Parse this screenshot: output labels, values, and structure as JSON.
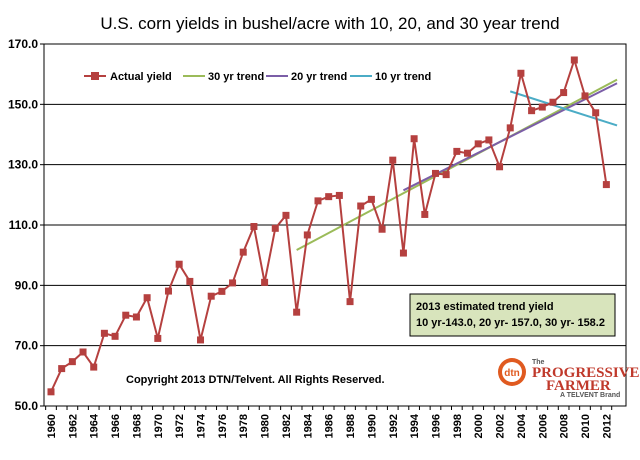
{
  "chart_data": {
    "type": "line",
    "title": "U.S. corn yields in bushel/acre with  10, 20, and 30 year trend",
    "ylim": [
      50,
      170
    ],
    "yticks": [
      "50.0",
      "70.0",
      "90.0",
      "110.0",
      "130.0",
      "150.0",
      "170.0"
    ],
    "ytick_values": [
      50,
      70,
      90,
      110,
      130,
      150,
      170
    ],
    "x_start": 1960,
    "x_end": 2013,
    "xtick_labels": [
      "1960",
      "1962",
      "1964",
      "1966",
      "1968",
      "1970",
      "1972",
      "1974",
      "1976",
      "1978",
      "1980",
      "1982",
      "1984",
      "1986",
      "1988",
      "1990",
      "1992",
      "1994",
      "1996",
      "1998",
      "2000",
      "2002",
      "2004",
      "2006",
      "2008",
      "2010",
      "2012"
    ],
    "grid": "horizontal",
    "legend_position": "top-left",
    "series": [
      {
        "name": "Actual yield",
        "color": "#b5403f",
        "marker": "square",
        "x": [
          1960,
          1961,
          1962,
          1963,
          1964,
          1965,
          1966,
          1967,
          1968,
          1969,
          1970,
          1971,
          1972,
          1973,
          1974,
          1975,
          1976,
          1977,
          1978,
          1979,
          1980,
          1981,
          1982,
          1983,
          1984,
          1985,
          1986,
          1987,
          1988,
          1989,
          1990,
          1991,
          1992,
          1993,
          1994,
          1995,
          1996,
          1997,
          1998,
          1999,
          2000,
          2001,
          2002,
          2003,
          2004,
          2005,
          2006,
          2007,
          2008,
          2009,
          2010,
          2011,
          2012
        ],
        "values": [
          54.7,
          62.4,
          64.7,
          67.9,
          62.9,
          74.1,
          73.1,
          80.1,
          79.5,
          85.9,
          72.4,
          88.1,
          97.0,
          91.3,
          71.9,
          86.4,
          88.0,
          90.8,
          101.0,
          109.5,
          91.0,
          108.9,
          113.2,
          81.1,
          106.7,
          118.0,
          119.4,
          119.8,
          84.6,
          116.3,
          118.5,
          108.6,
          131.5,
          100.7,
          138.6,
          113.5,
          127.1,
          126.7,
          134.4,
          133.8,
          136.9,
          138.2,
          129.3,
          142.2,
          160.3,
          147.9,
          149.1,
          150.7,
          153.9,
          164.7,
          152.8,
          147.2,
          123.4
        ]
      },
      {
        "name": "30 yr trend",
        "color": "#9bbb59",
        "x": [
          1983,
          2013
        ],
        "values": [
          101.7,
          158.2
        ]
      },
      {
        "name": "20 yr trend",
        "color": "#7b5ea7",
        "x": [
          1993,
          2013
        ],
        "values": [
          121.5,
          157.0
        ]
      },
      {
        "name": "10 yr trend",
        "color": "#4bacc6",
        "x": [
          2003,
          2013
        ],
        "values": [
          154.3,
          143.0
        ]
      }
    ]
  },
  "annotation": {
    "line1": "2013 estimated trend yield",
    "line2": "10 yr-143.0, 20 yr- 157.0, 30 yr- 158.2"
  },
  "copyright": "Copyright 2013 DTN/Telvent. All Rights Reserved.",
  "logo": {
    "mark": "dtn",
    "line1": "The",
    "line2": "PROGRESSIVE",
    "line3": "FARMER",
    "line4": "A TELVENT Brand"
  }
}
